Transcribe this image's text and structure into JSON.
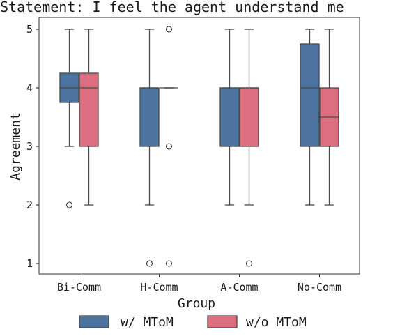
{
  "chart_data": {
    "type": "box",
    "title": "Statement: I feel the agent understand me",
    "xlabel": "Group",
    "ylabel": "Agreement",
    "categories": [
      "Bi-Comm",
      "H-Comm",
      "A-Comm",
      "No-Comm"
    ],
    "yticks": [
      1,
      2,
      3,
      4,
      5
    ],
    "ylim": [
      0.6,
      5.2
    ],
    "grid": false,
    "legend_position": "bottom",
    "colors": {
      "w_mtom": "#4c72a0",
      "wo_mtom": "#dd6e7f"
    },
    "series": [
      {
        "name": "w/ MToM",
        "color_key": "w_mtom",
        "boxes": [
          {
            "q1": 3.75,
            "median": 4,
            "q3": 4.25,
            "whislo": 3,
            "whishi": 5,
            "fliers": [
              2
            ]
          },
          {
            "q1": 3,
            "median": 4,
            "q3": 4,
            "whislo": 2,
            "whishi": 5,
            "fliers": [
              1
            ]
          },
          {
            "q1": 3,
            "median": 4,
            "q3": 4,
            "whislo": 2,
            "whishi": 5,
            "fliers": []
          },
          {
            "q1": 3,
            "median": 4,
            "q3": 4.75,
            "whislo": 2,
            "whishi": 5,
            "fliers": []
          }
        ]
      },
      {
        "name": "w/o MToM",
        "color_key": "wo_mtom",
        "boxes": [
          {
            "q1": 3,
            "median": 4,
            "q3": 4.25,
            "whislo": 2,
            "whishi": 5,
            "fliers": []
          },
          {
            "q1": 4,
            "median": 4,
            "q3": 4,
            "whislo": 4,
            "whishi": 4,
            "fliers": [
              5,
              3,
              1
            ]
          },
          {
            "q1": 3,
            "median": 4,
            "q3": 4,
            "whislo": 2,
            "whishi": 5,
            "fliers": [
              1
            ]
          },
          {
            "q1": 3,
            "median": 3.5,
            "q3": 4,
            "whislo": 2,
            "whishi": 5,
            "fliers": []
          }
        ]
      }
    ]
  }
}
